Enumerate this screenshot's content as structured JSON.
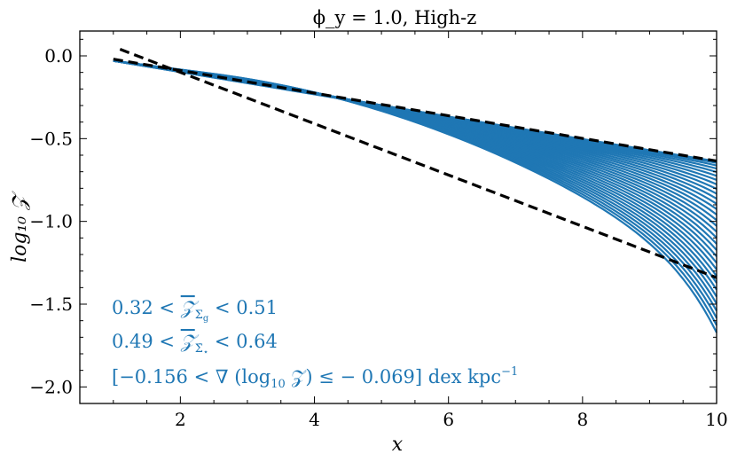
{
  "chart_data": {
    "type": "line",
    "title": "ϕ_y = 1.0, High-z",
    "xlabel": "x",
    "ylabel": "log₁₀ 𝒵",
    "xlim": [
      0.5,
      10
    ],
    "ylim": [
      -2.1,
      0.15
    ],
    "xticks": [
      2,
      4,
      6,
      8,
      10
    ],
    "yticks": [
      0.0,
      -0.5,
      -1.0,
      -1.5,
      -2.0
    ],
    "xtick_labels": [
      "2",
      "4",
      "6",
      "8",
      "10"
    ],
    "ytick_labels": [
      "0.0",
      "−0.5",
      "−1.0",
      "−1.5",
      "−2.0"
    ],
    "grid": false,
    "series_color": "#1f77b4",
    "curve_family": {
      "count": 32,
      "x_start": 1.0,
      "x_end": 10.0,
      "y_start": -0.03,
      "slope_upper": -0.0675,
      "end_values_lower": -2.0,
      "end_values_lower_inner": -1.85
    },
    "dashed_lines": [
      {
        "x": [
          1.0,
          10.0
        ],
        "y": [
          -0.02,
          -0.635
        ],
        "color": "#000000"
      },
      {
        "x": [
          1.1,
          10.0
        ],
        "y": [
          0.04,
          -1.34
        ],
        "color": "#000000"
      }
    ],
    "annotations": [
      {
        "id": "a1",
        "prefix": "0.32 < ",
        "symbol": "𝒵",
        "sub": "Σ",
        "subsub": "g",
        "suffix": " < 0.51"
      },
      {
        "id": "a2",
        "prefix": "0.49 < ",
        "symbol": "𝒵",
        "sub": "Σ̇",
        "subsub": "⋆",
        "suffix": " < 0.64"
      },
      {
        "id": "a3",
        "text_before": "[−0.156 < ∇ (log",
        "sub": "10",
        "text_mid": " 𝒵) ≤ − 0.069] dex kpc",
        "sup": "−1"
      }
    ]
  }
}
